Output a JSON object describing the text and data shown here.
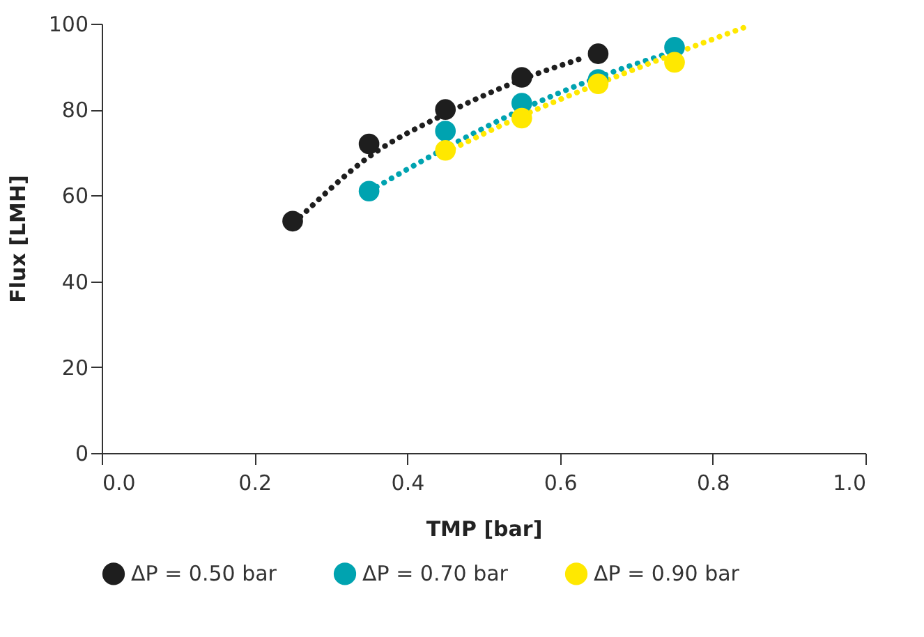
{
  "chart_data": {
    "type": "scatter",
    "xlabel": "TMP [bar]",
    "ylabel": "Flux [LMH]",
    "xlim": [
      0,
      1
    ],
    "xticks": [
      {
        "value": 0,
        "label": "0.0"
      },
      0.2,
      0.4,
      0.6,
      0.8,
      {
        "value": 1,
        "label": "1.0"
      }
    ],
    "ylim": [
      0,
      100
    ],
    "yticks": [
      0,
      20,
      40,
      60,
      80,
      100
    ],
    "grid": false,
    "legend": "bottom",
    "marker": "circle",
    "series": [
      {
        "name": "ΔP = 0.50 bar",
        "color": "#1e1e1e",
        "x": [
          0.25,
          0.35,
          0.45,
          0.55,
          0.65
        ],
        "values": [
          54,
          72,
          80,
          87.5,
          93
        ]
      },
      {
        "name": "ΔP = 0.70 bar",
        "color": "#00a3b0",
        "x": [
          0.35,
          0.45,
          0.55,
          0.65,
          0.75
        ],
        "values": [
          61,
          75,
          81.5,
          87,
          94.5
        ]
      },
      {
        "name": "ΔP = 0.90 bar",
        "color": "#ffe800",
        "x": [
          0.45,
          0.55,
          0.65,
          0.75
        ],
        "values": [
          70.5,
          78,
          86,
          91
        ]
      },
      {
        "type": "line",
        "line_style": "dotted",
        "marker": "none",
        "color": "#1e1e1e",
        "x": [
          0.26,
          0.35,
          0.45,
          0.55,
          0.63
        ],
        "values": [
          55,
          69,
          79,
          87,
          92
        ]
      },
      {
        "type": "line",
        "line_style": "dotted",
        "marker": "none",
        "color": "#00a3b0",
        "x": [
          0.36,
          0.45,
          0.55,
          0.65,
          0.74
        ],
        "values": [
          62,
          71,
          80,
          87.5,
          93
        ]
      },
      {
        "type": "line",
        "line_style": "dotted",
        "marker": "none",
        "color": "#ffe800",
        "x": [
          0.45,
          0.55,
          0.65,
          0.75,
          0.85
        ],
        "values": [
          70,
          78.5,
          86,
          93,
          99.7
        ]
      }
    ]
  }
}
